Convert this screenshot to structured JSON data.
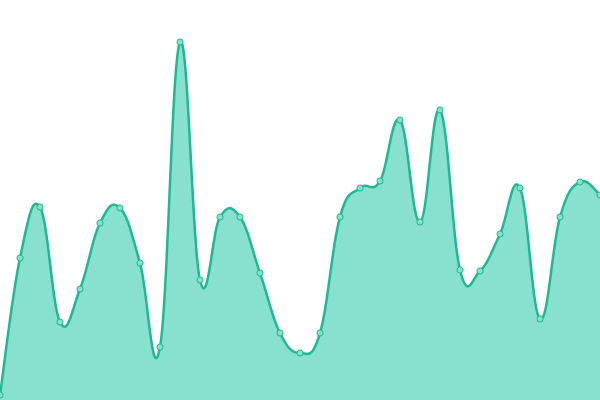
{
  "chart_data": {
    "type": "area",
    "categories": [
      null,
      null,
      null,
      null,
      null,
      null,
      null,
      null,
      null,
      null,
      null,
      null,
      null,
      null,
      null,
      null,
      null,
      null,
      null,
      null,
      null,
      null,
      null,
      null,
      null,
      null,
      null,
      null,
      null,
      null,
      null
    ],
    "values": [
      5,
      142,
      193,
      78,
      111,
      177,
      192,
      137,
      53,
      358,
      120,
      183,
      183,
      127,
      67,
      47,
      67,
      183,
      212,
      219,
      280,
      178,
      290,
      130,
      129,
      166,
      212,
      81,
      183,
      218,
      205
    ],
    "ylim": [
      0,
      400
    ],
    "color": "#1fb893",
    "fill_color": "#88e0cf"
  }
}
